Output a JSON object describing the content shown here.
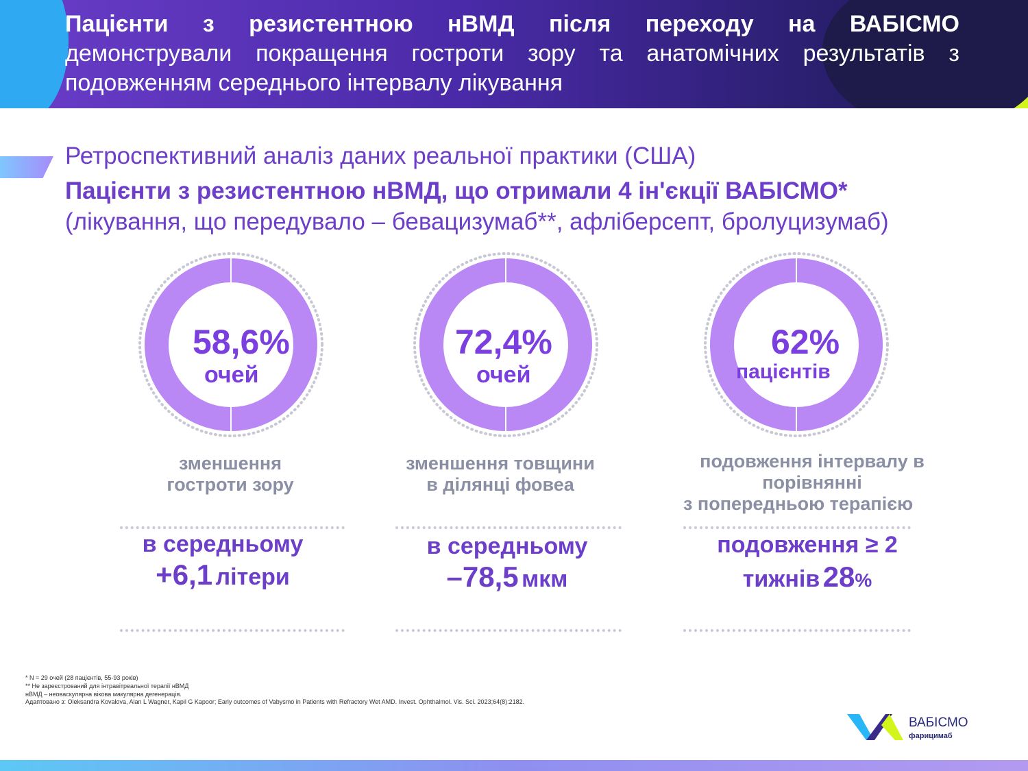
{
  "header": {
    "line1": "Пацієнти з резистентною нВМД після переходу на ВАБІСМО",
    "line2": "демонстрували покращення гостроти зору та анатомічних результатів з подовженням середнього інтервалу лікування"
  },
  "subtitle": {
    "line1": "Ретроспективний аналіз даних реальної практики (США)",
    "line2": "Пацієнти з резистентною нВМД, що отримали 4 ін'єкції ВАБІСМО*",
    "line3": "(лікування, що передувало – бевацизумаб**, афліберсепт, бролуцизумаб)"
  },
  "stats": [
    {
      "value": "58,6%",
      "unit": "очей",
      "desc_line1": "зменшення",
      "desc_line2": "гостроти зору",
      "result_line1": "в середньому",
      "result_value": "+6,1",
      "result_unit": "літери"
    },
    {
      "value": "72,4%",
      "unit": "очей",
      "desc_line1": "зменшення товщини",
      "desc_line2": "в ділянці фовеа",
      "result_line1": "в середньому",
      "result_value": "–78,5",
      "result_unit": "мкм"
    },
    {
      "value": "62%",
      "unit": "пацієнтів",
      "desc_line1": "подовження інтервалу в",
      "desc_line2": "порівнянні",
      "desc_line3": "з попередньою терапією",
      "result_line1": "подовження ≥ 2",
      "result_prefix": "тижнів",
      "result_value": "28",
      "result_unit": "%"
    }
  ],
  "footnotes": [
    "* N = 29 очей (28 пацієнтів, 55-93 років)",
    "** Не зареєстрований для інтравітреальної терапії нВМД",
    "нВМД – неоваскулярна вікова макулярна дегенерація.",
    "Адаптовано з:  Oleksandra Kovalova, Alan L Wagner, Kapil G Kapoor; Early outcomes of Vabysmo in Patients with Refractory Wet AMD. Invest. Ophthalmol. Vis. Sci. 2023;64(8):2182."
  ],
  "logo": {
    "name": "ВАБІСМО",
    "sub": "фарицимаб"
  },
  "colors": {
    "accent": "#7b3fe0",
    "ring": "#b988f5",
    "header_bg": "#2a1f6e",
    "lime": "#d4f51c"
  }
}
